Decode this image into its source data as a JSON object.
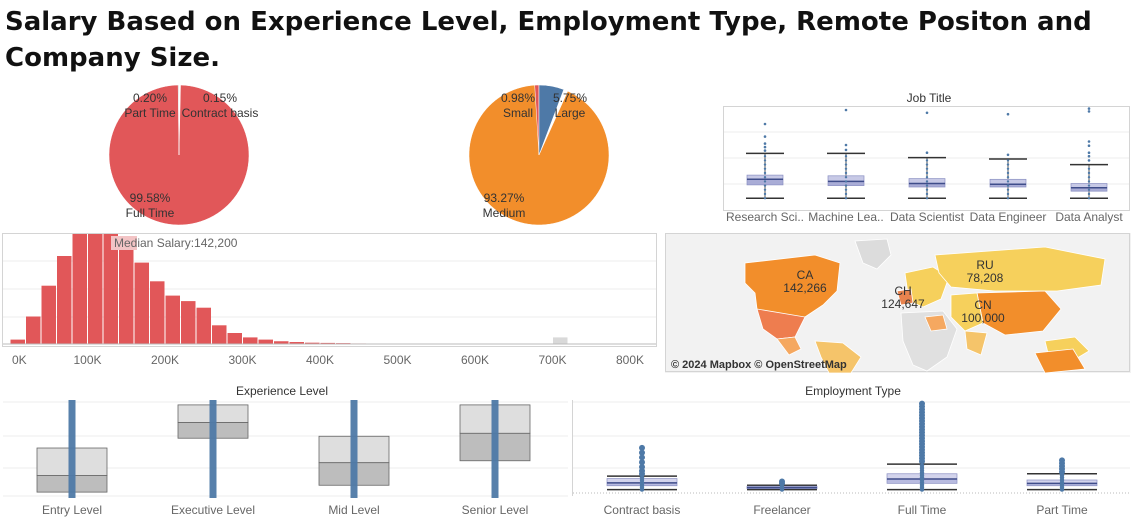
{
  "title": "Salary Based on Experience Level, Employment Type, Remote Positon and Company Size.",
  "colors": {
    "red": "#e15759",
    "orange": "#f28e2b",
    "blue": "#4e79a7",
    "box": "#bab0d8",
    "grey": "#c8c8c8"
  },
  "chart_data": [
    {
      "type": "pie",
      "name": "employment-pie",
      "slices": [
        {
          "label": "Full Time",
          "pct": "99.58%",
          "value": 99.58,
          "color": "#e15759"
        },
        {
          "label": "Part Time",
          "pct": "0.20%",
          "value": 0.2,
          "color": "#bfbfbf"
        },
        {
          "label": "Contract basis",
          "pct": "0.15%",
          "value": 0.15,
          "color": "#9c9c9c"
        }
      ]
    },
    {
      "type": "pie",
      "name": "company-size-pie",
      "slices": [
        {
          "label": "Medium",
          "pct": "93.27%",
          "value": 93.27,
          "color": "#f28e2b"
        },
        {
          "label": "Small",
          "pct": "0.98%",
          "value": 0.98,
          "color": "#e15759"
        },
        {
          "label": "Large",
          "pct": "5.75%",
          "value": 5.75,
          "color": "#4e79a7"
        }
      ]
    },
    {
      "type": "box",
      "name": "job-title-box",
      "title": "Job Title",
      "categories": [
        "Research Sci..",
        "Machine Lea..",
        "Data Scientist",
        "Data Engineer",
        "Data Analyst"
      ],
      "boxes": [
        {
          "min": 0.14,
          "q1": 0.33,
          "median": 0.41,
          "q3": 0.47,
          "max": 0.78,
          "outliers": [
            0.82,
            0.87,
            0.92,
            1.02,
            1.2
          ]
        },
        {
          "min": 0.14,
          "q1": 0.32,
          "median": 0.38,
          "q3": 0.46,
          "max": 0.78,
          "outliers": [
            0.83,
            0.9,
            1.4
          ]
        },
        {
          "min": 0.14,
          "q1": 0.3,
          "median": 0.35,
          "q3": 0.42,
          "max": 0.72,
          "outliers": [
            0.79,
            1.36
          ]
        },
        {
          "min": 0.14,
          "q1": 0.3,
          "median": 0.34,
          "q3": 0.41,
          "max": 0.7,
          "outliers": [
            0.76,
            1.34
          ]
        },
        {
          "min": 0.14,
          "q1": 0.24,
          "median": 0.29,
          "q3": 0.35,
          "max": 0.62,
          "outliers": [
            0.68,
            0.74,
            0.79,
            0.89,
            0.95,
            1.38,
            1.42
          ]
        }
      ]
    },
    {
      "type": "bar",
      "name": "salary-histogram",
      "annotation": "Median Salary:142,200",
      "median": 142200,
      "xlim": [
        0,
        850000
      ],
      "ylim": [
        0,
        1000
      ],
      "xticks": [
        0,
        100000,
        200000,
        300000,
        400000,
        500000,
        600000,
        700000,
        800000
      ],
      "xtick_labels": [
        "0K",
        "100K",
        "200K",
        "300K",
        "400K",
        "500K",
        "600K",
        "700K",
        "800K"
      ],
      "bin_width": 20000,
      "bins": [
        {
          "x": 0,
          "v": 40
        },
        {
          "x": 20000,
          "v": 250
        },
        {
          "x": 40000,
          "v": 530
        },
        {
          "x": 60000,
          "v": 800
        },
        {
          "x": 80000,
          "v": 1020
        },
        {
          "x": 100000,
          "v": 1010
        },
        {
          "x": 120000,
          "v": 1050
        },
        {
          "x": 140000,
          "v": 860
        },
        {
          "x": 160000,
          "v": 740
        },
        {
          "x": 180000,
          "v": 570
        },
        {
          "x": 200000,
          "v": 440
        },
        {
          "x": 220000,
          "v": 390
        },
        {
          "x": 240000,
          "v": 330
        },
        {
          "x": 260000,
          "v": 170
        },
        {
          "x": 280000,
          "v": 100
        },
        {
          "x": 300000,
          "v": 60
        },
        {
          "x": 320000,
          "v": 40
        },
        {
          "x": 340000,
          "v": 25
        },
        {
          "x": 360000,
          "v": 18
        },
        {
          "x": 380000,
          "v": 12
        },
        {
          "x": 400000,
          "v": 10
        },
        {
          "x": 420000,
          "v": 8
        },
        {
          "x": 440000,
          "v": 5
        },
        {
          "x": 460000,
          "v": 4
        },
        {
          "x": 480000,
          "v": 3
        },
        {
          "x": 500000,
          "v": 3
        },
        {
          "x": 520000,
          "v": 2
        },
        {
          "x": 540000,
          "v": 2
        },
        {
          "x": 560000,
          "v": 2
        },
        {
          "x": 580000,
          "v": 2
        },
        {
          "x": 600000,
          "v": 2
        },
        {
          "x": 620000,
          "v": 2
        },
        {
          "x": 640000,
          "v": 2
        },
        {
          "x": 660000,
          "v": 2
        },
        {
          "x": 680000,
          "v": 2
        },
        {
          "x": 700000,
          "v": 60
        },
        {
          "x": 720000,
          "v": 2
        }
      ]
    },
    {
      "type": "box",
      "name": "experience-level-box",
      "title": "Experience Level",
      "categories": [
        "Entry Level",
        "Executive Level",
        "Mid Level",
        "Senior Level"
      ],
      "boxes": [
        {
          "q1": 0.06,
          "median": 0.23,
          "q3": 0.51
        },
        {
          "q1": 0.61,
          "median": 0.77,
          "q3": 0.95
        },
        {
          "q1": 0.13,
          "median": 0.36,
          "q3": 0.63
        },
        {
          "q1": 0.38,
          "median": 0.66,
          "q3": 0.95
        }
      ]
    },
    {
      "type": "box",
      "name": "employment-type-box",
      "title": "Employment Type",
      "categories": [
        "Contract basis",
        "Freelancer",
        "Full Time",
        "Part Time"
      ],
      "boxes": [
        {
          "min": 0.05,
          "q1": 0.13,
          "median": 0.19,
          "q3": 0.28,
          "max": 0.33,
          "outliers": [
            0.38,
            0.44,
            0.52,
            0.62,
            0.72,
            0.82,
            0.92
          ]
        },
        {
          "min": 0.05,
          "q1": 0.07,
          "median": 0.09,
          "q3": 0.12,
          "max": 0.14,
          "outliers": [
            0.18,
            0.22
          ]
        },
        {
          "min": 0.05,
          "q1": 0.18,
          "median": 0.27,
          "q3": 0.38,
          "max": 0.58,
          "outliers": [
            0.64,
            0.7,
            0.76,
            0.82,
            0.88,
            0.94,
            1.0,
            1.06,
            1.12,
            1.18,
            1.24,
            1.3,
            1.36,
            1.42,
            1.48,
            1.54,
            1.6,
            1.66,
            1.72,
            1.78,
            1.84,
            1.88
          ]
        },
        {
          "min": 0.05,
          "q1": 0.13,
          "median": 0.18,
          "q3": 0.25,
          "max": 0.38,
          "outliers": [
            0.42,
            0.48,
            0.54,
            0.6,
            0.66
          ]
        }
      ]
    },
    {
      "type": "map",
      "name": "salary-map",
      "attribution": "© 2024 Mapbox © OpenStreetMap",
      "labels": [
        {
          "code": "CA",
          "value": "142,266"
        },
        {
          "code": "RU",
          "value": "78,208"
        },
        {
          "code": "CH",
          "value": "124,647"
        },
        {
          "code": "CN",
          "value": "100,000"
        }
      ]
    }
  ]
}
